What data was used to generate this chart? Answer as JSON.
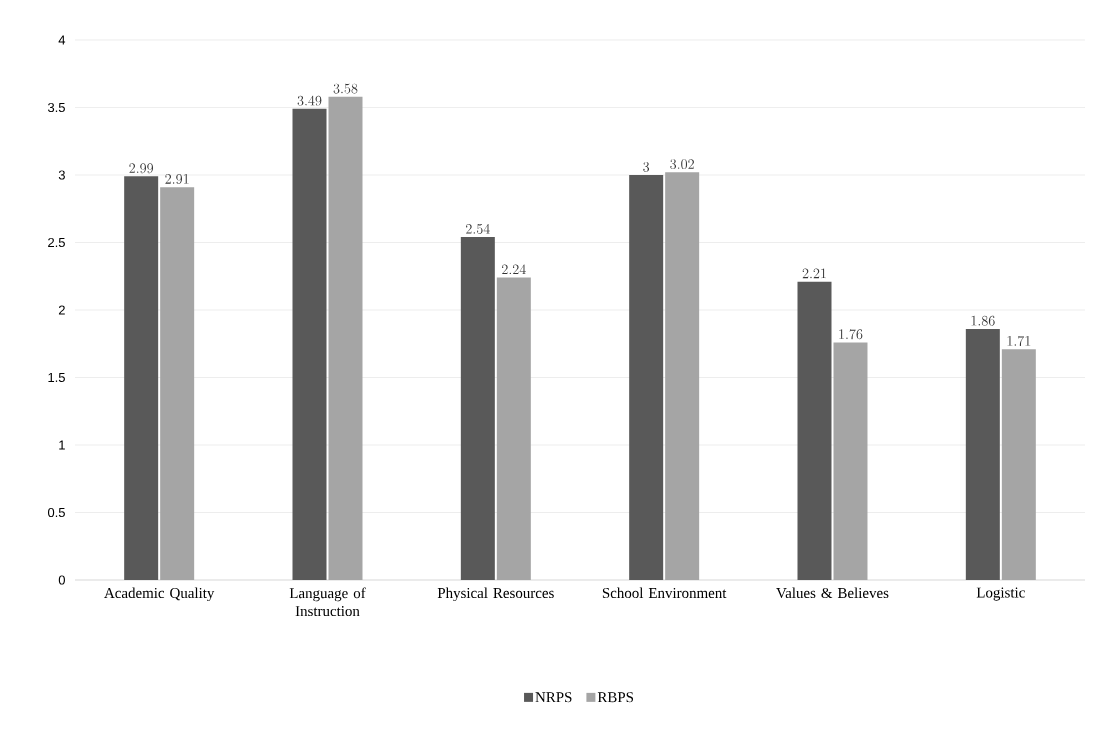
{
  "chart_data": {
    "type": "bar",
    "categories": [
      "Academic Quality",
      "Language of Instruction",
      "Physical Resources",
      "School Environment",
      "Values & Believes",
      "Logistic"
    ],
    "series": [
      {
        "name": "NRPS",
        "color": "#595959",
        "values": [
          2.99,
          3.49,
          2.54,
          3,
          2.21,
          1.86
        ]
      },
      {
        "name": "RBPS",
        "color": "#a5a5a5",
        "values": [
          2.91,
          3.58,
          2.24,
          3.02,
          1.76,
          1.71
        ]
      }
    ],
    "ylim": [
      0,
      4
    ],
    "yticks": [
      0,
      0.5,
      1,
      1.5,
      2,
      2.5,
      3,
      3.5,
      4
    ],
    "grid": "y",
    "legend": "bottom",
    "data_labels": true
  }
}
